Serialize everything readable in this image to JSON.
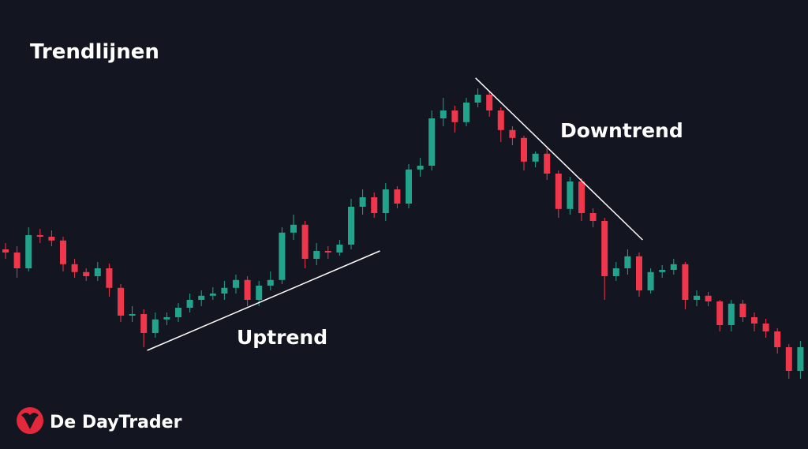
{
  "chart_data": {
    "type": "candlestick",
    "title": "Trendlijnen",
    "ylim": [
      0,
      110
    ],
    "up_color": "#22a38c",
    "down_color": "#f0364a",
    "open": [
      51,
      50,
      45,
      55.5,
      55,
      53.8,
      46.3,
      43.8,
      42.5,
      45,
      38.8,
      30,
      30.5,
      24.5,
      28.8,
      29.5,
      32.5,
      35,
      36.3,
      37,
      38.8,
      41.3,
      35,
      39.5,
      41.3,
      56.3,
      58.8,
      48,
      50.5,
      50,
      52.5,
      64.5,
      67.5,
      62.5,
      70,
      65.5,
      76.3,
      77.5,
      92.5,
      95,
      91.3,
      97.5,
      100,
      95,
      88.8,
      86.3,
      78.8,
      81.3,
      75,
      63.8,
      72.5,
      62.5,
      60,
      42.5,
      45,
      48.8,
      38,
      43.8,
      44.5,
      46.3,
      35,
      36.3,
      34.5,
      27,
      33.8,
      29.5,
      27.5,
      25,
      20,
      12.5
    ],
    "high": [
      53,
      52,
      58,
      57.5,
      57,
      55,
      48,
      45,
      47,
      46.5,
      40,
      33,
      32,
      31,
      31,
      34,
      37,
      38,
      39,
      41,
      43,
      42.5,
      41,
      44,
      58,
      62,
      60,
      53,
      52,
      54,
      67,
      70,
      69,
      72,
      71,
      78,
      80,
      95,
      99,
      96.5,
      99,
      102,
      101,
      96,
      90,
      87,
      82,
      83,
      76,
      74,
      73.5,
      64,
      61,
      47,
      51,
      50,
      45,
      46,
      48,
      47,
      38,
      37.5,
      35,
      35,
      35,
      31,
      29,
      26,
      21,
      22
    ],
    "low": [
      48,
      42,
      44,
      53,
      52,
      44,
      42,
      41,
      41,
      36,
      28,
      28,
      20,
      23,
      27,
      28,
      31,
      33,
      35,
      35,
      37,
      33,
      33,
      38,
      40,
      54,
      45,
      46,
      48,
      49,
      51,
      62,
      61,
      60,
      64,
      64,
      74,
      76,
      90,
      88,
      90,
      96,
      93,
      85,
      84,
      76,
      77,
      73,
      61,
      62,
      60,
      58,
      35,
      41,
      43,
      36,
      37,
      42,
      43,
      32,
      33,
      33,
      25,
      25,
      28,
      25,
      23,
      18,
      10,
      10
    ],
    "close": [
      50,
      45,
      55.5,
      55,
      53.8,
      46.3,
      43.8,
      42.5,
      45,
      38.8,
      30,
      30.5,
      24.5,
      28.8,
      29.5,
      32.5,
      35,
      36.3,
      37,
      38.8,
      41.3,
      35,
      39.5,
      41.3,
      56.3,
      58.8,
      48,
      50.5,
      50,
      52.5,
      64.5,
      67.5,
      62.5,
      70,
      65.5,
      76.3,
      77.5,
      92.5,
      95,
      91.3,
      97.5,
      100,
      95,
      88.8,
      86.3,
      78.8,
      81.3,
      75,
      63.8,
      72.5,
      62.5,
      60,
      42.5,
      45,
      48.8,
      38,
      43.8,
      44.5,
      46.3,
      35,
      36.3,
      34.5,
      27,
      33.8,
      29.5,
      27.5,
      25,
      20,
      12.5,
      20
    ],
    "trendlines": [
      {
        "label": "Uptrend",
        "start": [
          12.3,
          19
        ],
        "end": [
          32.5,
          50.5
        ]
      },
      {
        "label": "Downtrend",
        "start": [
          40.8,
          105.3
        ],
        "end": [
          55.3,
          54
        ]
      }
    ]
  },
  "brand": "De DayTrader"
}
